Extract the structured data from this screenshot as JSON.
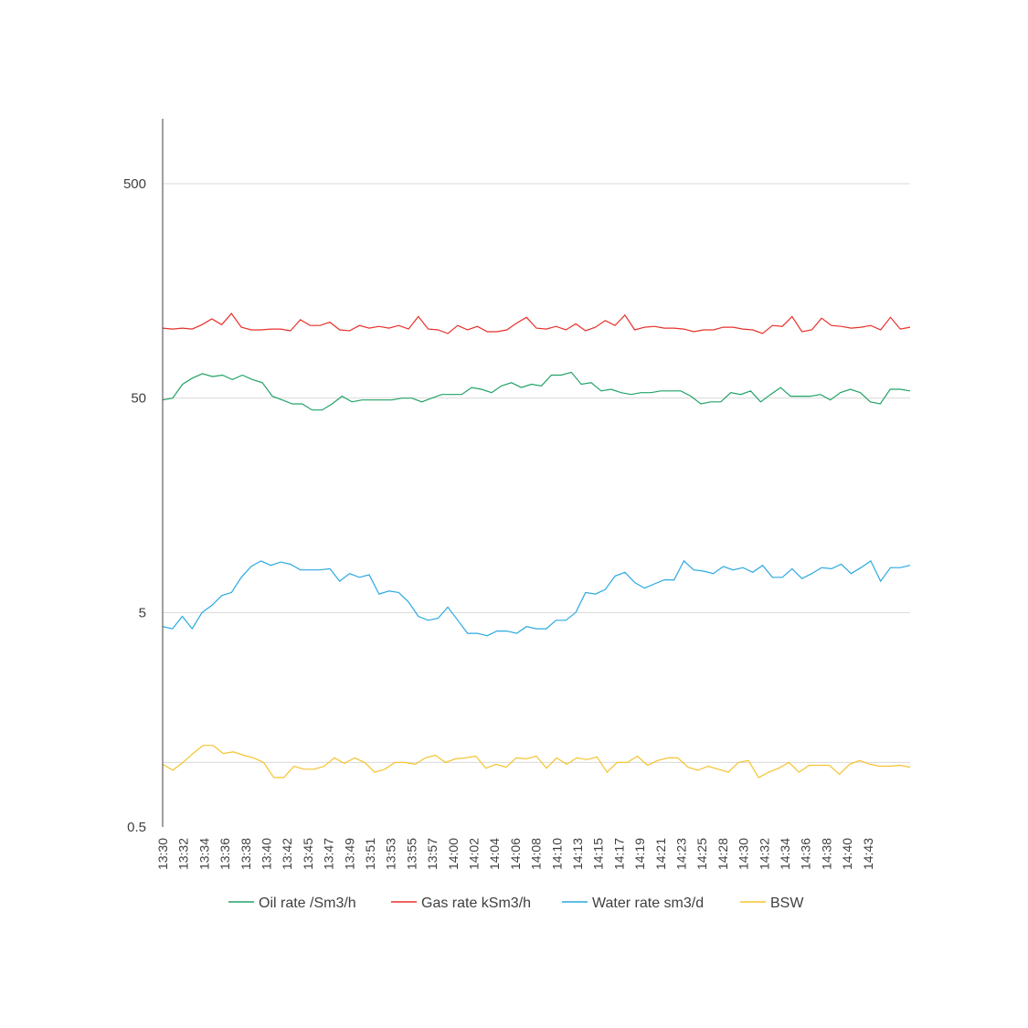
{
  "chart_data": {
    "type": "line",
    "title": "",
    "xlabel": "",
    "ylabel": "",
    "y_scale": "log",
    "ylim": [
      0.5,
      1500
    ],
    "y_ticks": [
      0.5,
      5,
      50,
      500
    ],
    "y_tick_labels": [
      "0.5",
      "5",
      "50",
      "500"
    ],
    "grid": "horizontal",
    "legend_position": "bottom",
    "x_tick_labels": [
      "13:30",
      "13:32",
      "13:34",
      "13:36",
      "13:38",
      "13:40",
      "13:42",
      "13:45",
      "13:47",
      "13:49",
      "13:51",
      "13:53",
      "13:55",
      "13:57",
      "14:00",
      "14:02",
      "14:04",
      "14:06",
      "14:08",
      "14:10",
      "14:13",
      "14:15",
      "14:17",
      "14:19",
      "14:21",
      "14:23",
      "14:25",
      "14:28",
      "14:30",
      "14:32",
      "14:34",
      "14:36",
      "14:38",
      "14:40",
      "14:43"
    ],
    "series": [
      {
        "name": "Oil rate /Sm3/h",
        "color": "#21a366",
        "values": [
          49,
          50,
          58,
          62,
          65,
          63,
          64,
          61,
          64,
          61,
          59,
          51,
          49,
          47,
          47,
          44,
          44,
          47,
          51,
          48,
          49,
          49,
          49,
          49,
          50,
          50,
          48,
          50,
          52,
          52,
          52,
          56,
          55,
          53,
          57,
          59,
          56,
          58,
          57,
          64,
          64,
          66,
          58,
          59,
          54,
          55,
          53,
          52,
          53,
          53,
          54,
          54,
          54,
          51,
          47,
          48,
          48,
          53,
          52,
          54,
          48,
          52,
          56,
          51,
          51,
          51,
          52,
          49,
          53,
          55,
          53,
          48,
          47,
          55,
          55,
          54
        ]
      },
      {
        "name": "Gas rate kSm3/h",
        "color": "#e8302a",
        "values": [
          106,
          105,
          106,
          105,
          110,
          117,
          110,
          124,
          107,
          104,
          104,
          105,
          105,
          103,
          116,
          109,
          109,
          113,
          104,
          103,
          109,
          106,
          108,
          106,
          109,
          105,
          120,
          105,
          104,
          100,
          109,
          104,
          108,
          102,
          102,
          104,
          112,
          119,
          106,
          105,
          108,
          104,
          111,
          103,
          107,
          115,
          109,
          122,
          104,
          107,
          108,
          106,
          106,
          105,
          102,
          104,
          104,
          107,
          107,
          105,
          104,
          100,
          109,
          108,
          120,
          102,
          104,
          118,
          109,
          108,
          106,
          107,
          109,
          104,
          119,
          105,
          107
        ]
      },
      {
        "name": "Water rate sm3/d",
        "color": "#2aa9e0",
        "values": [
          4.3,
          4.2,
          4.8,
          4.2,
          5.0,
          5.4,
          6.0,
          6.2,
          7.3,
          8.2,
          8.7,
          8.3,
          8.6,
          8.4,
          7.9,
          7.9,
          7.9,
          8.0,
          7.0,
          7.6,
          7.3,
          7.5,
          6.1,
          6.3,
          6.2,
          5.6,
          4.8,
          4.6,
          4.7,
          5.3,
          4.6,
          4.0,
          4.0,
          3.9,
          4.1,
          4.1,
          4.0,
          4.3,
          4.2,
          4.2,
          4.6,
          4.6,
          5.0,
          6.2,
          6.1,
          6.4,
          7.4,
          7.7,
          6.9,
          6.5,
          6.8,
          7.1,
          7.1,
          8.7,
          7.9,
          7.8,
          7.6,
          8.2,
          7.9,
          8.1,
          7.7,
          8.3,
          7.3,
          7.3,
          8.0,
          7.2,
          7.6,
          8.1,
          8.0,
          8.4,
          7.6,
          8.1,
          8.7,
          7.0,
          8.1,
          8.1,
          8.3
        ]
      },
      {
        "name": "BSW",
        "color": "#f5c330",
        "values": [
          0.98,
          0.92,
          1.0,
          1.1,
          1.2,
          1.2,
          1.1,
          1.12,
          1.08,
          1.05,
          1.0,
          0.85,
          0.85,
          0.96,
          0.93,
          0.93,
          0.96,
          1.05,
          0.99,
          1.05,
          1.0,
          0.9,
          0.93,
          1.0,
          1.0,
          0.98,
          1.05,
          1.08,
          1.0,
          1.04,
          1.05,
          1.07,
          0.94,
          0.98,
          0.95,
          1.05,
          1.04,
          1.07,
          0.94,
          1.05,
          0.98,
          1.05,
          1.03,
          1.06,
          0.9,
          1.0,
          1.0,
          1.07,
          0.97,
          1.02,
          1.05,
          1.05,
          0.95,
          0.92,
          0.96,
          0.93,
          0.9,
          1.0,
          1.02,
          0.85,
          0.9,
          0.94,
          1.0,
          0.9,
          0.97,
          0.97,
          0.97,
          0.88,
          0.98,
          1.02,
          0.98,
          0.96,
          0.96,
          0.97,
          0.95
        ]
      }
    ]
  }
}
